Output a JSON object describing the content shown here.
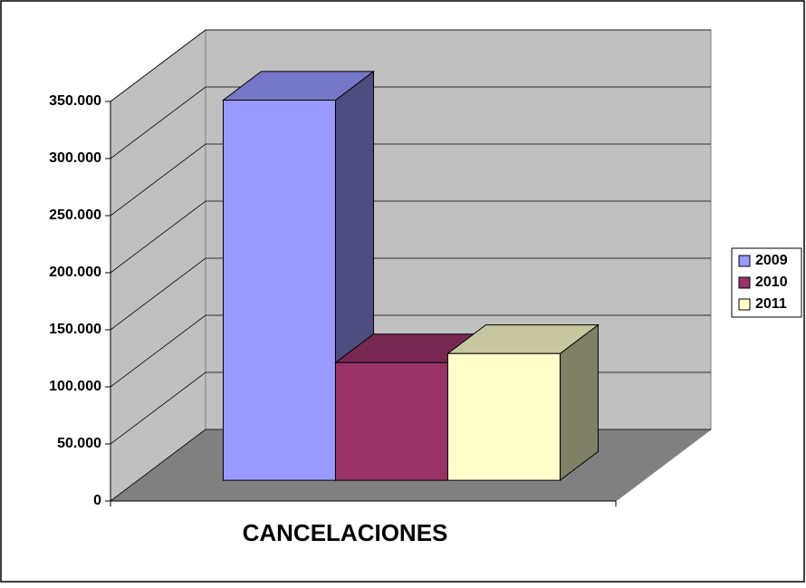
{
  "chart_data": {
    "type": "bar3d",
    "categories": [
      "CANCELACIONES"
    ],
    "series": [
      {
        "name": "2009",
        "color": "#9999ff",
        "values": [
          333000
        ]
      },
      {
        "name": "2010",
        "color": "#993366",
        "values": [
          103000
        ]
      },
      {
        "name": "2011",
        "color": "#ffffcc",
        "values": [
          111000
        ]
      }
    ],
    "ylim": [
      0,
      350000
    ],
    "yticks": [
      {
        "value": 0,
        "label": "0"
      },
      {
        "value": 50000,
        "label": "50.000"
      },
      {
        "value": 100000,
        "label": "100.000"
      },
      {
        "value": 150000,
        "label": "150.000"
      },
      {
        "value": 200000,
        "label": "200.000"
      },
      {
        "value": 250000,
        "label": "250.000"
      },
      {
        "value": 300000,
        "label": "300.000"
      },
      {
        "value": 350000,
        "label": "350.000"
      }
    ],
    "grid": true,
    "legend": "right"
  }
}
